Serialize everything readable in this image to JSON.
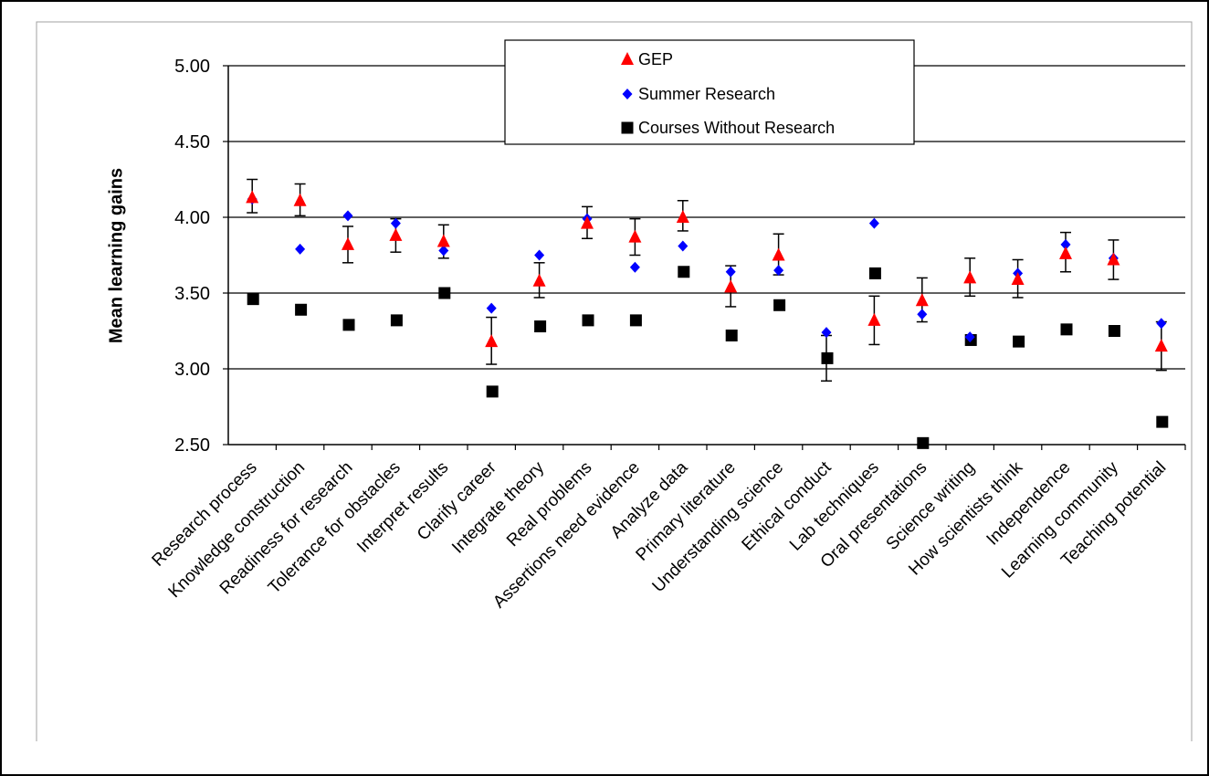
{
  "chart_data": {
    "type": "scatter",
    "ylabel": "Mean learning gains",
    "ylim": [
      2.5,
      5.0
    ],
    "yticks": [
      "2.50",
      "3.00",
      "3.50",
      "4.00",
      "4.50",
      "5.00"
    ],
    "grid": true,
    "legend_position": "top-center",
    "categories": [
      "Research process",
      "Knowledge construction",
      "Readiness for research",
      "Tolerance for obstacles",
      "Interpret results",
      "Clarify career",
      "Integrate theory",
      "Real problems",
      "Assertions need evidence",
      "Analyze data",
      "Primary literature",
      "Understanding science",
      "Ethical conduct",
      "Lab techniques",
      "Oral presentations",
      "Science writing",
      "How scientists think",
      "Independence",
      "Learning community",
      "Teaching potential"
    ],
    "series": [
      {
        "name": "GEP",
        "marker": "triangle",
        "color": "#ff0000",
        "values": [
          4.13,
          4.11,
          3.82,
          3.88,
          3.84,
          3.18,
          3.58,
          3.96,
          3.87,
          4.0,
          3.54,
          3.75,
          null,
          3.32,
          3.45,
          3.6,
          3.59,
          3.76,
          3.72,
          3.15
        ],
        "error_low": [
          4.03,
          4.01,
          3.7,
          3.77,
          3.73,
          3.03,
          3.47,
          3.86,
          3.75,
          3.91,
          3.41,
          3.62,
          null,
          3.16,
          3.31,
          3.48,
          3.47,
          3.64,
          3.59,
          2.99
        ],
        "error_high": [
          4.25,
          4.22,
          3.94,
          3.99,
          3.95,
          3.34,
          3.7,
          4.07,
          3.99,
          4.11,
          3.68,
          3.89,
          null,
          3.48,
          3.6,
          3.73,
          3.72,
          3.9,
          3.85,
          3.31
        ]
      },
      {
        "name": "Summer Research",
        "marker": "diamond",
        "color": "#0000ff",
        "values": [
          4.12,
          3.79,
          4.01,
          3.96,
          3.78,
          3.4,
          3.75,
          3.99,
          3.67,
          3.81,
          3.64,
          3.65,
          3.24,
          3.96,
          3.36,
          3.21,
          3.63,
          3.82,
          3.73,
          3.3
        ]
      },
      {
        "name": "Courses Without Research",
        "marker": "square",
        "color": "#000000",
        "values": [
          3.46,
          3.39,
          3.29,
          3.32,
          3.5,
          2.85,
          3.28,
          3.32,
          3.32,
          3.64,
          3.22,
          3.42,
          3.07,
          3.63,
          2.51,
          3.19,
          3.18,
          3.26,
          3.25,
          2.65
        ],
        "error_low": [
          null,
          null,
          null,
          null,
          null,
          null,
          null,
          null,
          null,
          null,
          null,
          null,
          2.92,
          null,
          null,
          null,
          null,
          null,
          null,
          null
        ],
        "error_high": [
          null,
          null,
          null,
          null,
          null,
          null,
          null,
          null,
          null,
          null,
          null,
          null,
          3.22,
          null,
          null,
          null,
          null,
          null,
          null,
          null
        ]
      }
    ]
  }
}
